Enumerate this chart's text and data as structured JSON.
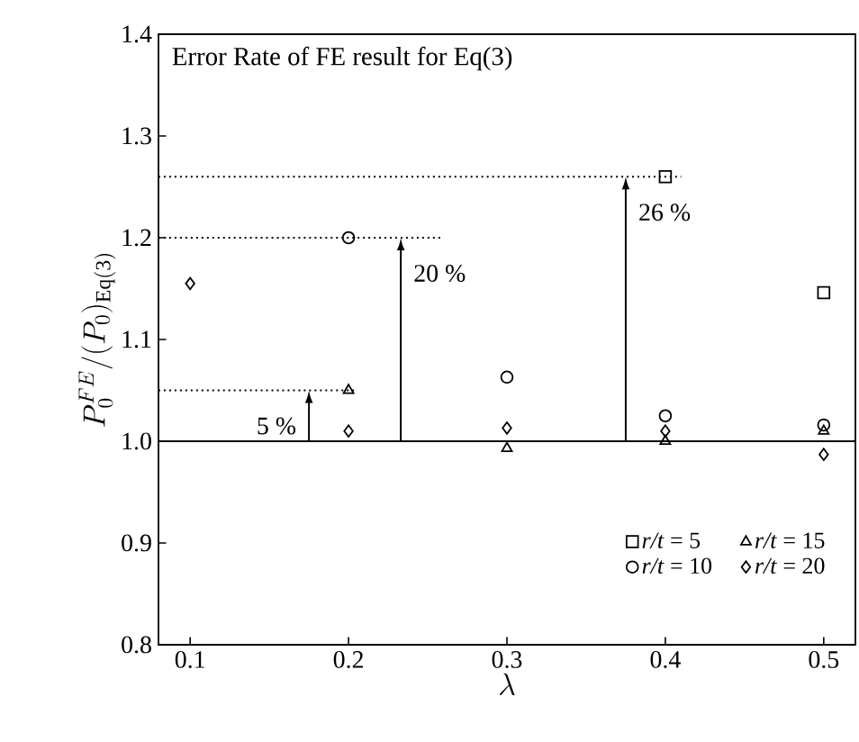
{
  "chart_data": {
    "type": "scatter",
    "title": "Error Rate of FE result for Eq(3)",
    "xlabel": "\\lambda",
    "ylabel": "P_0^{FE}/(P_0)_{\\mathrm{Eq(3)}}",
    "xlim": [
      0.08,
      0.52
    ],
    "ylim": [
      0.8,
      1.4
    ],
    "xticks": [
      0.1,
      0.2,
      0.3,
      0.4,
      0.5
    ],
    "yticks": [
      {
        "value": 0.8,
        "label": "0.8"
      },
      {
        "value": 0.9,
        "label": "0.9"
      },
      {
        "value": 1,
        "label": "1.0"
      },
      {
        "value": 1.1,
        "label": "1.1"
      },
      {
        "value": 1.2,
        "label": "1.2"
      },
      {
        "value": 1.3,
        "label": "1.3"
      },
      {
        "value": 1.4,
        "label": "1.4"
      }
    ],
    "series": [
      {
        "name": "*r/t* = 5",
        "color": "#000000",
        "marker": "square",
        "x": [
          0.4,
          0.5
        ],
        "values": [
          1.26,
          1.146
        ]
      },
      {
        "name": "*r/t* = 10",
        "color": "#000000",
        "marker": "circle",
        "x": [
          0.2,
          0.3,
          0.4,
          0.5
        ],
        "values": [
          1.2,
          1.063,
          1.025,
          1.016
        ]
      },
      {
        "name": "*r/t* = 15",
        "color": "#000000",
        "marker": "triangle",
        "x": [
          0.2,
          0.3,
          0.4,
          0.5
        ],
        "values": [
          1.05,
          0.993,
          1.0,
          1.01
        ]
      },
      {
        "name": "*r/t* = 20",
        "color": "#000000",
        "marker": "diamond",
        "x": [
          0.1,
          0.2,
          0.3,
          0.4,
          0.5
        ],
        "values": [
          1.155,
          1.01,
          1.013,
          1.01,
          0.987
        ]
      },
      {
        "type": "line",
        "color": "#000000",
        "marker": "none",
        "line_style": "dotted",
        "x": [
          0.08,
          0.205
        ],
        "values": [
          1.05,
          1.05
        ]
      },
      {
        "type": "line",
        "color": "#000000",
        "marker": "none",
        "line_style": "dotted",
        "x": [
          0.08,
          0.26
        ],
        "values": [
          1.2,
          1.2
        ]
      },
      {
        "type": "line",
        "color": "#000000",
        "marker": "none",
        "line_style": "dotted",
        "x": [
          0.08,
          0.41
        ],
        "values": [
          1.26,
          1.26
        ]
      }
    ],
    "ref_lines": [
      {
        "axis": "y",
        "value": 1,
        "color": "#000000",
        "line_style": "solid"
      }
    ],
    "annotations": [
      {
        "text": "5 %",
        "x": 0.175,
        "y": 1.05
      },
      {
        "text": "20 %",
        "x": 0.233,
        "y": 1.2
      },
      {
        "text": "26 %",
        "x": 0.375,
        "y": 1.26
      }
    ],
    "legend": "bottom right",
    "grid": false
  }
}
